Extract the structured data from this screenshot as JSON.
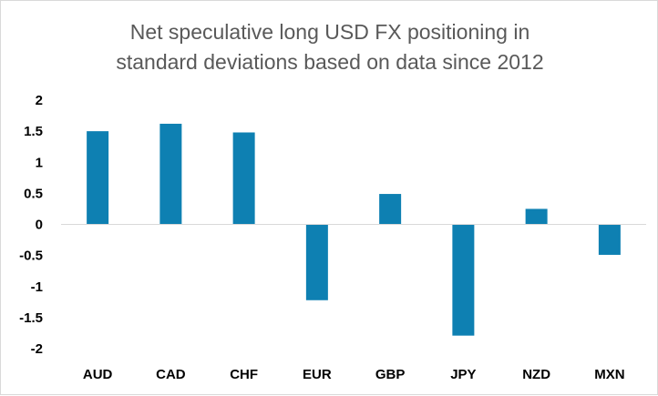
{
  "chart_data": {
    "type": "bar",
    "title_lines": [
      "Net speculative long USD FX positioning in",
      "standard deviations based on data since 2012"
    ],
    "categories": [
      "AUD",
      "CAD",
      "CHF",
      "EUR",
      "GBP",
      "JPY",
      "NZD",
      "MXN"
    ],
    "values": [
      1.5,
      1.62,
      1.48,
      -1.22,
      0.49,
      -1.79,
      0.25,
      -0.49
    ],
    "yticks": [
      2,
      1.5,
      1,
      0.5,
      0,
      -0.5,
      -1,
      -1.5,
      -2
    ],
    "ytick_labels": [
      "2",
      "1.5",
      "1",
      "0.5",
      "0",
      "-0.5",
      "-1",
      "-1.5",
      "-2"
    ],
    "ylim": [
      -2,
      2
    ],
    "xlabel": "",
    "ylabel": "",
    "grid": false,
    "legend": false,
    "bar_color": "#0e80b2",
    "axis_color": "#d9d9d9"
  }
}
